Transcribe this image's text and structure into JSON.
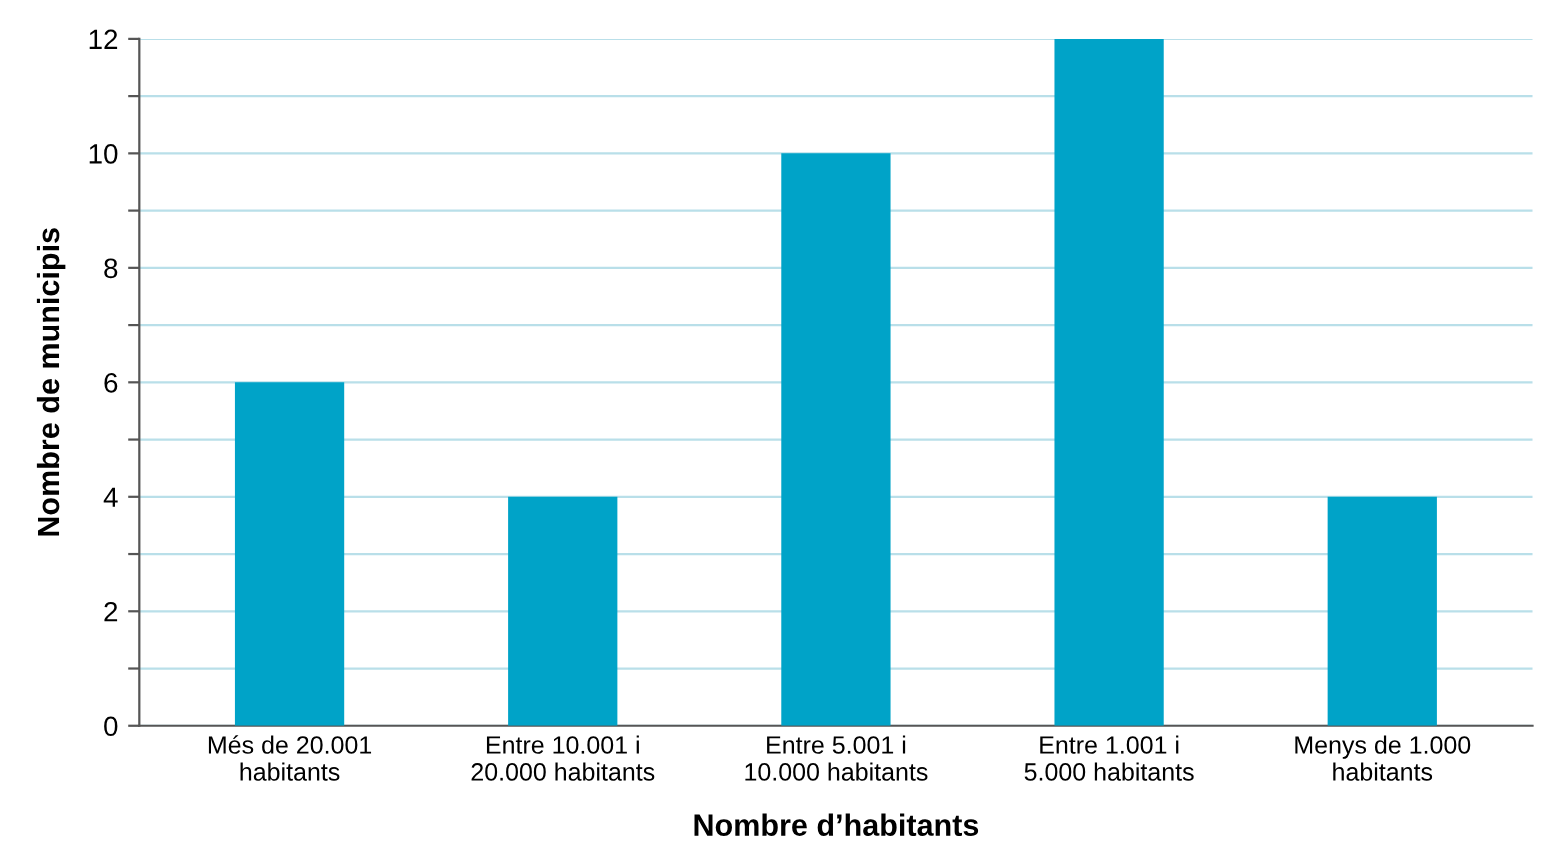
{
  "chart_data": {
    "type": "bar",
    "xlabel": "Nombre d’habitants",
    "ylabel": "Nombre de municipis",
    "categories": [
      "Més de 20.001\nhabitants",
      "Entre 10.001 i\n20.000 habitants",
      "Entre 5.001 i\n10.000 habitants",
      "Entre 1.001 i\n5.000 habitants",
      "Menys de 1.000\nhabitants"
    ],
    "values": [
      6,
      4,
      10,
      12,
      4
    ],
    "color": "#00a3c8",
    "ylim": [
      0,
      12
    ],
    "yticks": [
      0,
      {
        "value": 1,
        "label": null
      },
      2,
      {
        "value": 3,
        "label": null
      },
      4,
      {
        "value": 5,
        "label": null
      },
      6,
      {
        "value": 7,
        "label": null
      },
      8,
      {
        "value": 9,
        "label": null
      },
      10,
      {
        "value": 11,
        "label": null
      },
      12
    ],
    "grid": "y"
  }
}
